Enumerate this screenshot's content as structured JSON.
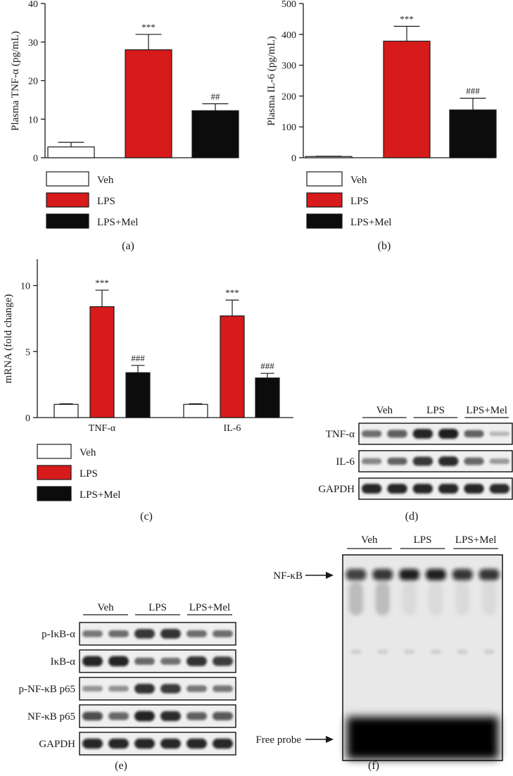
{
  "colors": {
    "veh": "#ffffff",
    "lps": "#d71a1a",
    "mel": "#0c0c0c",
    "axis": "#1a1a1a"
  },
  "groups": [
    "Veh",
    "LPS",
    "LPS+Mel"
  ],
  "legend_labels": [
    "Veh",
    "LPS",
    "LPS+Mel"
  ],
  "panel_labels": {
    "a": "(a)",
    "b": "(b)",
    "c": "(c)",
    "d": "(d)",
    "e": "(e)",
    "f": "(f)"
  },
  "chart_data": [
    {
      "panel": "a",
      "type": "bar",
      "ylabel": "Plasma TNF-α (pg/mL)",
      "xlabel": "",
      "categories": [
        "Veh",
        "LPS",
        "LPS+Mel"
      ],
      "values": [
        2.8,
        28.0,
        12.2
      ],
      "errors": [
        1.2,
        4.0,
        1.8
      ],
      "annotations": [
        "",
        "***",
        "##"
      ],
      "ylim": [
        0,
        40
      ],
      "yticks": [
        0,
        10,
        20,
        30,
        40
      ],
      "legend": [
        "Veh",
        "LPS",
        "LPS+Mel"
      ],
      "grid": false
    },
    {
      "panel": "b",
      "type": "bar",
      "ylabel": "Plasma IL-6 (pg/mL)",
      "xlabel": "",
      "categories": [
        "Veh",
        "LPS",
        "LPS+Mel"
      ],
      "values": [
        4,
        378,
        155
      ],
      "errors": [
        1,
        48,
        38
      ],
      "annotations": [
        "",
        "***",
        "###"
      ],
      "ylim": [
        0,
        500
      ],
      "yticks": [
        0,
        100,
        200,
        300,
        400,
        500
      ],
      "legend": [
        "Veh",
        "LPS",
        "LPS+Mel"
      ],
      "grid": false
    },
    {
      "panel": "c",
      "type": "bar",
      "ylabel": "mRNA (fold change)",
      "xlabel": "",
      "categories": [
        "TNF-α",
        "IL-6"
      ],
      "ylim": [
        0,
        12
      ],
      "yticks": [
        0,
        5,
        10
      ],
      "series": [
        {
          "name": "Veh",
          "values": [
            1.0,
            1.0
          ],
          "errors": [
            0.05,
            0.05
          ],
          "annotations": [
            "",
            ""
          ]
        },
        {
          "name": "LPS",
          "values": [
            8.4,
            7.7
          ],
          "errors": [
            1.25,
            1.2
          ],
          "annotations": [
            "***",
            "***"
          ]
        },
        {
          "name": "LPS+Mel",
          "values": [
            3.4,
            3.0
          ],
          "errors": [
            0.55,
            0.35
          ],
          "annotations": [
            "###",
            "###"
          ]
        }
      ],
      "legend": [
        "Veh",
        "LPS",
        "LPS+Mel"
      ],
      "grid": false
    }
  ],
  "blot_d": {
    "groups": [
      "Veh",
      "LPS",
      "LPS+Mel"
    ],
    "rows": [
      {
        "label": "TNF-α",
        "intensity": [
          0.5,
          0.62,
          0.92,
          0.95,
          0.55,
          0.14
        ]
      },
      {
        "label": "IL-6",
        "intensity": [
          0.38,
          0.55,
          0.82,
          0.88,
          0.58,
          0.28
        ]
      },
      {
        "label": "GAPDH",
        "intensity": [
          0.9,
          0.9,
          0.9,
          0.9,
          0.9,
          0.88
        ]
      }
    ]
  },
  "blot_e": {
    "groups": [
      "Veh",
      "LPS",
      "LPS+Mel"
    ],
    "rows": [
      {
        "label": "p-IκB-α",
        "intensity": [
          0.45,
          0.5,
          0.82,
          0.85,
          0.5,
          0.5
        ]
      },
      {
        "label": "IκB-α",
        "intensity": [
          0.92,
          0.92,
          0.52,
          0.48,
          0.85,
          0.8
        ]
      },
      {
        "label": "p-NF-κB p65",
        "intensity": [
          0.3,
          0.32,
          0.85,
          0.8,
          0.45,
          0.45
        ]
      },
      {
        "label": "NF-κB p65",
        "intensity": [
          0.72,
          0.58,
          0.92,
          0.88,
          0.62,
          0.66
        ]
      },
      {
        "label": "GAPDH",
        "intensity": [
          0.9,
          0.9,
          0.9,
          0.9,
          0.9,
          0.9
        ]
      }
    ]
  },
  "emsa_f": {
    "groups": [
      "Veh",
      "LPS",
      "LPS+Mel"
    ],
    "nfkb_label": "NF-κB",
    "free_probe_label": "Free probe",
    "nfkb_intensity": [
      0.72,
      0.8,
      0.95,
      0.95,
      0.8,
      0.8
    ]
  }
}
